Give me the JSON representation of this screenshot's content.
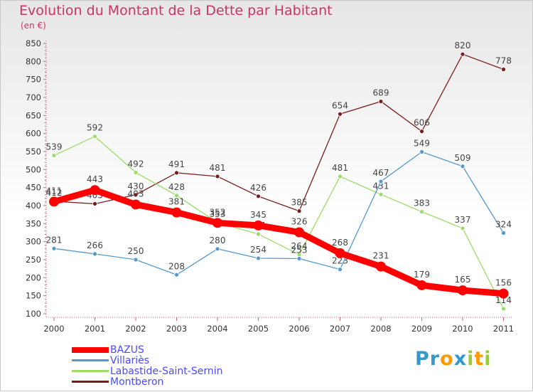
{
  "chart_data": {
    "type": "line",
    "title": "Evolution du Montant de la Dette par Habitant",
    "subtitle": "(en €)",
    "categories": [
      "2000",
      "2001",
      "2002",
      "2003",
      "2004",
      "2005",
      "2006",
      "2007",
      "2008",
      "2009",
      "2010",
      "2011"
    ],
    "yticks": [
      100,
      150,
      200,
      250,
      300,
      350,
      400,
      450,
      500,
      550,
      600,
      650,
      700,
      750,
      800,
      850
    ],
    "ylim": [
      100,
      850
    ],
    "series": [
      {
        "name": "Montberon",
        "color": "#7a1c1c",
        "values": [
          412,
          405,
          430,
          491,
          481,
          426,
          385,
          654,
          689,
          606,
          820,
          778
        ]
      },
      {
        "name": "Labastide-Saint-Sernin",
        "color": "#99dd66",
        "values": [
          539,
          592,
          492,
          428,
          353,
          321,
          264,
          481,
          431,
          383,
          337,
          114
        ]
      },
      {
        "name": "Villariès",
        "color": "#5599cc",
        "values": [
          281,
          266,
          250,
          208,
          280,
          254,
          253,
          223,
          467,
          549,
          509,
          324
        ]
      },
      {
        "name": "BAZUS",
        "color": "#ff0000",
        "values": [
          411,
          443,
          403,
          381,
          352,
          345,
          326,
          268,
          231,
          179,
          165,
          156
        ]
      }
    ]
  },
  "legend": {
    "items": [
      {
        "label": "BAZUS",
        "color": "#ff0000"
      },
      {
        "label": "Villariès",
        "color": "#5599cc"
      },
      {
        "label": "Labastide-Saint-Sernin",
        "color": "#99dd66"
      },
      {
        "label": "Montberon",
        "color": "#7a1c1c"
      }
    ]
  },
  "logo": {
    "text": "Proxiti",
    "letters": [
      {
        "char": "P",
        "color": "#3399cc"
      },
      {
        "char": "r",
        "color": "#3399cc"
      },
      {
        "char": "o",
        "color": "#ff9900"
      },
      {
        "char": "x",
        "color": "#3399cc"
      },
      {
        "char": "i",
        "color": "#99cc33"
      },
      {
        "char": "t",
        "color": "#ff9900"
      },
      {
        "char": "i",
        "color": "#99cc33"
      }
    ]
  }
}
